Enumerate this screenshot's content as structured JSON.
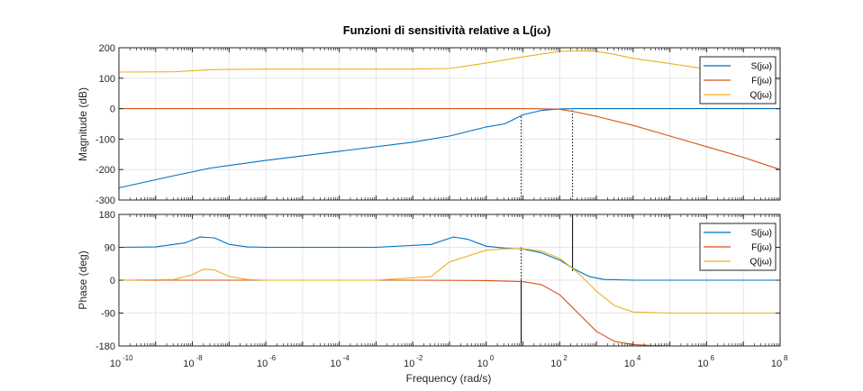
{
  "figure": {
    "title": "Funzioni di sensitività relative a L(jω)",
    "xlabel": "Frequency  (rad/s)",
    "x_ticks": [
      -10,
      -8,
      -6,
      -4,
      -2,
      0,
      2,
      4,
      6,
      8
    ],
    "x_tick_base": "10",
    "x_tick_exponents": [
      "-10",
      "-8",
      "-6",
      "-4",
      "-2",
      "0",
      "2",
      "4",
      "6",
      "8"
    ]
  },
  "chart_data": [
    {
      "type": "line",
      "name": "magnitude",
      "title": "Funzioni di sensitività relative a L(jω)",
      "xlabel": "Frequency  (rad/s)",
      "ylabel": "Magnitude (dB)",
      "xscale": "log",
      "xlim_log10": [
        -10,
        8
      ],
      "ylim": [
        -300,
        200
      ],
      "yticks": [
        200,
        100,
        0,
        -100,
        -200,
        -300
      ],
      "ytick_labels": [
        "200",
        "100",
        "0",
        "-100",
        "-200",
        "-300"
      ],
      "grid": true,
      "legend_position": "top-right",
      "series": [
        {
          "name": "S(jω)",
          "color": "#0072BD",
          "x_log10": [
            -10,
            -8.5,
            -7.5,
            -6,
            -4,
            -2,
            -1,
            0,
            0.5,
            1,
            1.5,
            2,
            2.5,
            3,
            5,
            8
          ],
          "y": [
            -260,
            -220,
            -195,
            -170,
            -140,
            -110,
            -90,
            -60,
            -50,
            -20,
            -6,
            -1,
            0,
            0,
            0,
            0
          ]
        },
        {
          "name": "F(jω)",
          "color": "#D95319",
          "x_log10": [
            -10,
            0,
            1,
            1.5,
            2,
            2.4,
            3,
            4,
            5,
            6,
            7,
            8
          ],
          "y": [
            0,
            0,
            0,
            -0.5,
            -2,
            -10,
            -25,
            -55,
            -90,
            -125,
            -160,
            -200
          ]
        },
        {
          "name": "Q(jω)",
          "color": "#EDB120",
          "x_log10": [
            -10,
            -8.5,
            -7.5,
            -6,
            -4,
            -2,
            -1,
            0,
            1,
            2,
            2.5,
            3,
            3.5,
            4,
            5,
            6,
            7,
            8
          ],
          "y": [
            120,
            121,
            128,
            130,
            130,
            130,
            132,
            150,
            170,
            188,
            190,
            188,
            178,
            165,
            148,
            130,
            112,
            95
          ]
        }
      ],
      "markers": [
        {
          "x_log10": 0.95,
          "y_from": -300,
          "y_to": -20,
          "style": "dotted"
        },
        {
          "x_log10": 2.35,
          "y_from": -300,
          "y_to": 0,
          "style": "dotted"
        }
      ]
    },
    {
      "type": "line",
      "name": "phase",
      "xlabel": "Frequency  (rad/s)",
      "ylabel": "Phase (deg)",
      "xscale": "log",
      "xlim_log10": [
        -10,
        8
      ],
      "ylim": [
        -180,
        180
      ],
      "yticks": [
        180,
        90,
        0,
        -90,
        -180
      ],
      "ytick_labels": [
        "180",
        "90",
        "0",
        "-90",
        "-180"
      ],
      "grid": true,
      "legend_position": "top-right",
      "series": [
        {
          "name": "S(jω)",
          "color": "#0072BD",
          "x_log10": [
            -10,
            -9,
            -8.2,
            -7.8,
            -7.4,
            -7,
            -6.5,
            -6,
            -3,
            -1.5,
            -0.9,
            -0.5,
            0,
            0.5,
            1,
            1.5,
            2,
            2.4,
            2.8,
            3.2,
            4,
            8
          ],
          "y": [
            90,
            91,
            102,
            118,
            116,
            98,
            91,
            90,
            90,
            98,
            118,
            112,
            93,
            88,
            85,
            75,
            55,
            30,
            10,
            2,
            0,
            0
          ]
        },
        {
          "name": "F(jω)",
          "color": "#D95319",
          "x_log10": [
            -10,
            -2,
            0,
            1,
            1.5,
            2,
            2.5,
            3,
            3.5,
            4,
            4.5,
            5,
            8
          ],
          "y": [
            0,
            0,
            -1,
            -4,
            -12,
            -40,
            -90,
            -140,
            -168,
            -176,
            -179,
            -180,
            -180
          ]
        },
        {
          "name": "Q(jω)",
          "color": "#EDB120",
          "x_log10": [
            -10,
            -8.5,
            -8,
            -7.7,
            -7.4,
            -7,
            -6.5,
            -6,
            -3,
            -1.5,
            -1,
            0,
            0.5,
            1,
            1.5,
            2,
            2.5,
            3,
            3.5,
            4,
            5,
            8
          ],
          "y": [
            0,
            2,
            15,
            30,
            28,
            10,
            2,
            0,
            0,
            10,
            50,
            82,
            86,
            86,
            80,
            60,
            20,
            -30,
            -70,
            -87,
            -90,
            -90
          ]
        }
      ],
      "markers": [
        {
          "x_log10": 0.95,
          "y_from": -180,
          "y_to": 90,
          "style": "dotted"
        },
        {
          "x_log10": 0.95,
          "y_from": -180,
          "y_to": 0,
          "style": "solid"
        },
        {
          "x_log10": 2.35,
          "y_from": 180,
          "y_to": 25,
          "style": "solid"
        }
      ]
    }
  ]
}
